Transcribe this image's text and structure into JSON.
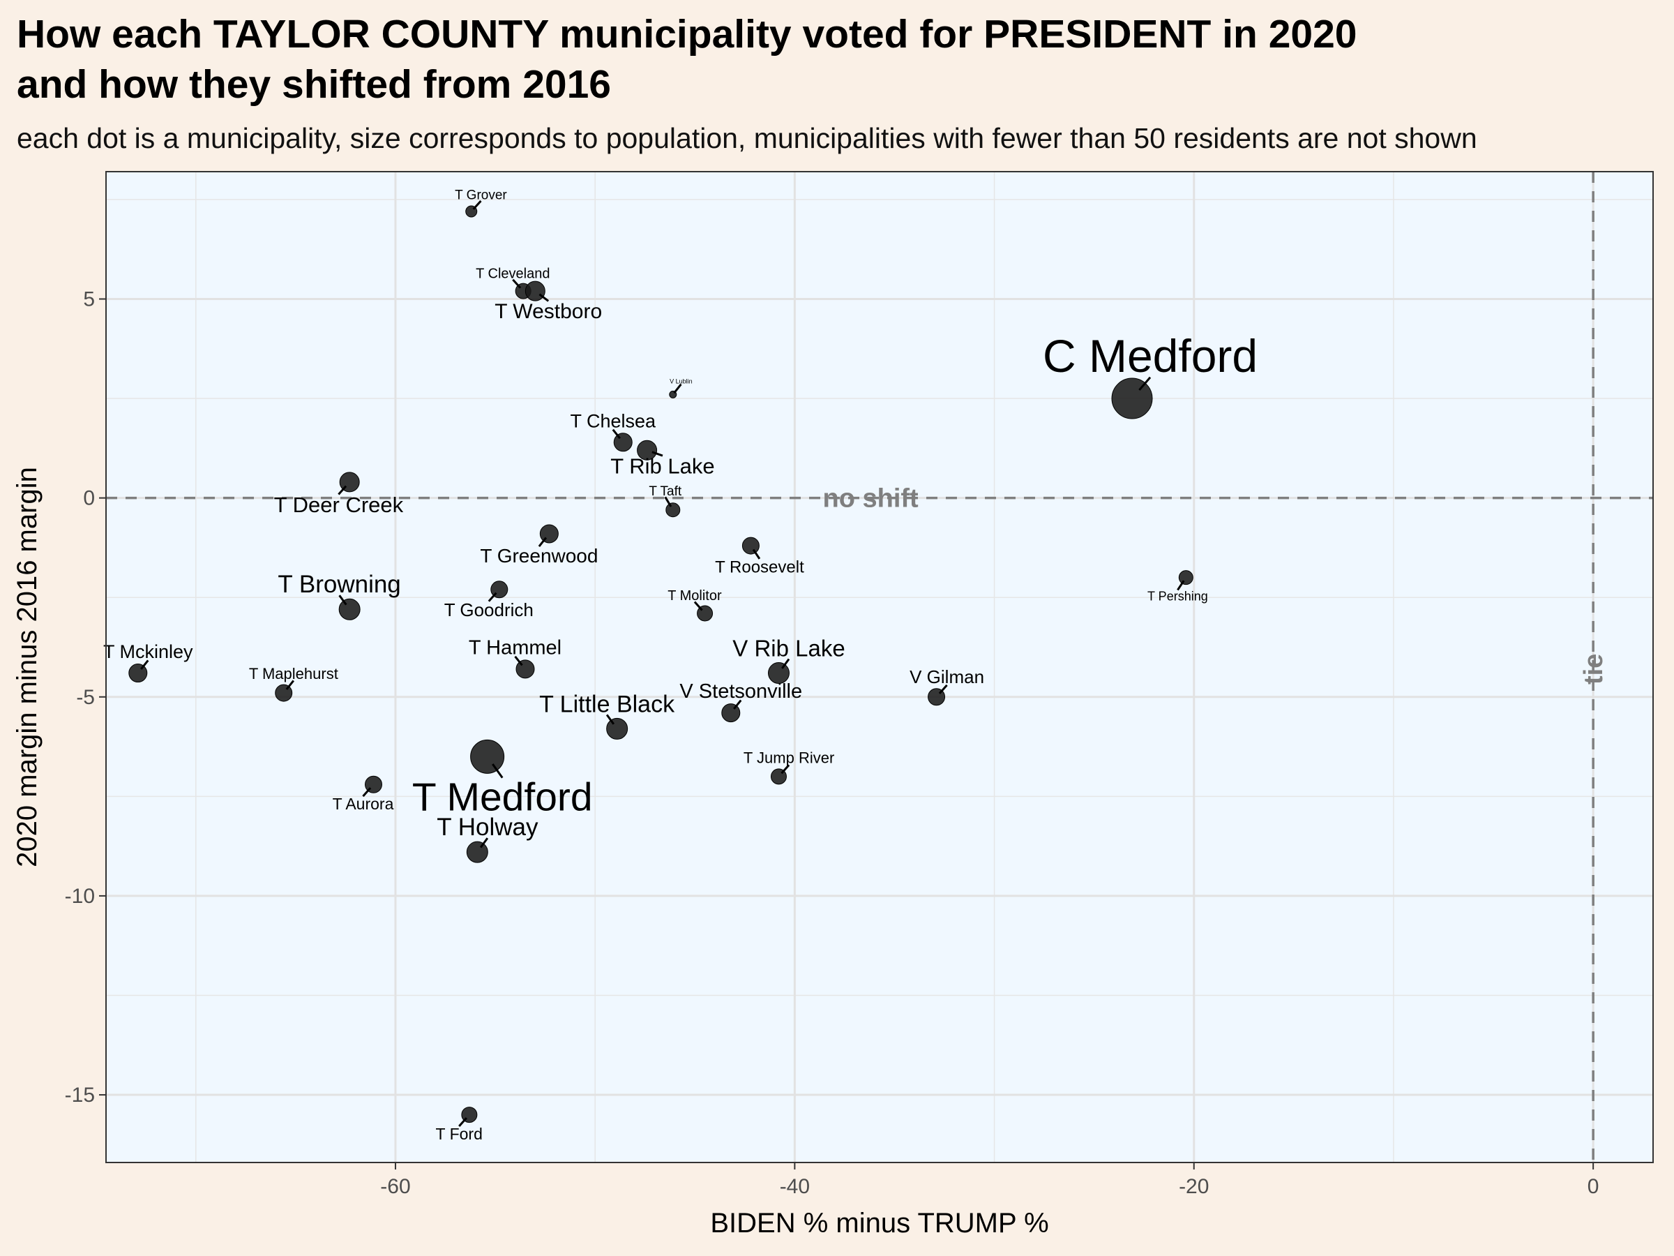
{
  "title_line1": "How each TAYLOR COUNTY municipality voted for PRESIDENT in 2020",
  "title_line2": "and how they shifted from 2016",
  "subtitle": "each dot is a municipality, size corresponds to population, municipalities with fewer than 50 residents are not shown",
  "chart_data": {
    "type": "scatter",
    "xlabel": "BIDEN % minus TRUMP %",
    "ylabel": "2020 margin minus 2016 margin",
    "xlim": [
      -74.5,
      3.0
    ],
    "ylim": [
      -16.7,
      8.2
    ],
    "x_ticks": [
      -60,
      -40,
      -20,
      0
    ],
    "y_ticks": [
      -15,
      -10,
      -5,
      0,
      5
    ],
    "grid": true,
    "reference_lines": [
      {
        "axis": "y",
        "value": 0,
        "label": "no shift"
      },
      {
        "axis": "x",
        "value": 0,
        "label": "tie"
      }
    ],
    "colors": {
      "plot_background": "#f0f8ff",
      "page_background": "#faf0e6",
      "point": "#1a1a1a",
      "reference_line": "#7f7f7f"
    },
    "points": [
      {
        "name": "T Grover",
        "x": -56.2,
        "y": 7.2,
        "size": 8,
        "label_font": 19,
        "lox": 5,
        "loy": 5.5
      },
      {
        "name": "T Cleveland",
        "x": -53.6,
        "y": 5.2,
        "size": 11,
        "label_font": 20,
        "lox": -5,
        "loy": 5.5
      },
      {
        "name": "T Westboro",
        "x": -53.0,
        "y": 5.2,
        "size": 14,
        "label_font": 30,
        "lox": 5,
        "loy": -3.8
      },
      {
        "name": "V Lublin",
        "x": -46.1,
        "y": 2.6,
        "size": 5,
        "label_font": 9,
        "lox": 3,
        "loy": 3.8
      },
      {
        "name": "C Medford",
        "x": -23.1,
        "y": 2.5,
        "size": 29,
        "label_font": 66,
        "lox": 6,
        "loy": 7
      },
      {
        "name": "T Chelsea",
        "x": -48.6,
        "y": 1.4,
        "size": 13,
        "label_font": 27,
        "lox": -4,
        "loy": 5
      },
      {
        "name": "T Rib Lake",
        "x": -47.4,
        "y": 1.2,
        "size": 14,
        "label_font": 31,
        "lox": 10,
        "loy": -3.5
      },
      {
        "name": "T Deer Creek",
        "x": -62.3,
        "y": 0.4,
        "size": 14,
        "label_font": 31,
        "lox": -4,
        "loy": -4.5
      },
      {
        "name": "T Taft",
        "x": -46.1,
        "y": -0.3,
        "size": 10,
        "label_font": 19,
        "lox": -3,
        "loy": 5
      },
      {
        "name": "T Greenwood",
        "x": -52.3,
        "y": -0.9,
        "size": 13,
        "label_font": 28,
        "lox": -4,
        "loy": -5
      },
      {
        "name": "T Roosevelt",
        "x": -42.2,
        "y": -1.2,
        "size": 12,
        "label_font": 24,
        "lox": 3,
        "loy": -4.5
      },
      {
        "name": "T Pershing",
        "x": -20.4,
        "y": -2.0,
        "size": 10,
        "label_font": 18,
        "lox": -3,
        "loy": -4.5
      },
      {
        "name": "T Goodrich",
        "x": -54.8,
        "y": -2.3,
        "size": 12,
        "label_font": 26,
        "lox": -4,
        "loy": -4.5
      },
      {
        "name": "T Browning",
        "x": -62.3,
        "y": -2.8,
        "size": 15,
        "label_font": 35,
        "lox": -4,
        "loy": 5.5
      },
      {
        "name": "T Molitor",
        "x": -44.5,
        "y": -2.9,
        "size": 11,
        "label_font": 20,
        "lox": -4,
        "loy": 4.5
      },
      {
        "name": "T Mckinley",
        "x": -72.9,
        "y": -4.4,
        "size": 13,
        "label_font": 27,
        "lox": 4,
        "loy": 5
      },
      {
        "name": "T Hammel",
        "x": -53.5,
        "y": -4.3,
        "size": 13,
        "label_font": 29,
        "lox": -4,
        "loy": 5
      },
      {
        "name": "V Rib Lake",
        "x": -40.8,
        "y": -4.4,
        "size": 15,
        "label_font": 33,
        "lox": 4,
        "loy": 5.5
      },
      {
        "name": "T Maplehurst",
        "x": -65.6,
        "y": -4.9,
        "size": 12,
        "label_font": 22,
        "lox": 4,
        "loy": 5
      },
      {
        "name": "V Gilman",
        "x": -32.9,
        "y": -5.0,
        "size": 12,
        "label_font": 26,
        "lox": 4,
        "loy": 4.5
      },
      {
        "name": "V Stetsonville",
        "x": -43.2,
        "y": -5.4,
        "size": 13,
        "label_font": 29,
        "lox": 4,
        "loy": 5
      },
      {
        "name": "T Little Black",
        "x": -48.9,
        "y": -5.8,
        "size": 15,
        "label_font": 34,
        "lox": -4,
        "loy": 5.5
      },
      {
        "name": "T Medford",
        "x": -55.4,
        "y": -6.5,
        "size": 24,
        "label_font": 57,
        "lox": 5,
        "loy": -7
      },
      {
        "name": "T Aurora",
        "x": -61.1,
        "y": -7.2,
        "size": 12,
        "label_font": 23,
        "lox": -4,
        "loy": -4.5
      },
      {
        "name": "T Jump River",
        "x": -40.8,
        "y": -7.0,
        "size": 11,
        "label_font": 22,
        "lox": 4,
        "loy": 4.5
      },
      {
        "name": "T Holway",
        "x": -55.9,
        "y": -8.9,
        "size": 15,
        "label_font": 35,
        "lox": 4,
        "loy": 5.5
      },
      {
        "name": "T Ford",
        "x": -56.3,
        "y": -15.5,
        "size": 11,
        "label_font": 23,
        "lox": -4,
        "loy": -4.5
      }
    ]
  }
}
